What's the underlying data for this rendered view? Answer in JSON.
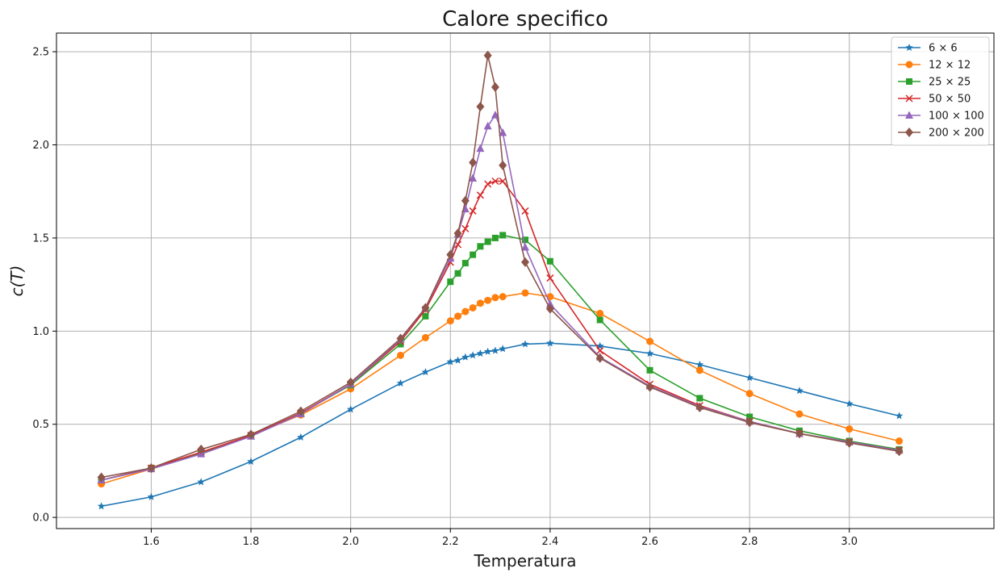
{
  "chart_data": {
    "type": "line",
    "title": "Calore specifico",
    "xlabel": "Temperatura",
    "ylabel": "c(T)",
    "xlim": [
      1.41,
      3.29
    ],
    "ylim": [
      -0.06,
      2.6
    ],
    "xticks": [
      1.6,
      1.8,
      2.0,
      2.2,
      2.4,
      2.6,
      2.8,
      3.0
    ],
    "xtick_labels": [
      "1.6",
      "1.8",
      "2.0",
      "2.2",
      "2.4",
      "2.6",
      "2.8",
      "3.0"
    ],
    "yticks": [
      0.0,
      0.5,
      1.0,
      1.5,
      2.0,
      2.5
    ],
    "ytick_labels": [
      "0.0",
      "0.5",
      "1.0",
      "1.5",
      "2.0",
      "2.5"
    ],
    "grid": true,
    "legend_position": "top-right",
    "series": [
      {
        "name": "6 × 6",
        "color": "#1f77b4",
        "marker": "star",
        "x": [
          1.5,
          1.6,
          1.7,
          1.8,
          1.9,
          2.0,
          2.1,
          2.15,
          2.2,
          2.215,
          2.23,
          2.245,
          2.26,
          2.275,
          2.29,
          2.305,
          2.35,
          2.4,
          2.5,
          2.6,
          2.7,
          2.8,
          2.9,
          3.0,
          3.1
        ],
        "y": [
          0.06,
          0.11,
          0.19,
          0.3,
          0.43,
          0.58,
          0.72,
          0.78,
          0.835,
          0.843,
          0.86,
          0.87,
          0.88,
          0.89,
          0.895,
          0.905,
          0.93,
          0.935,
          0.92,
          0.88,
          0.82,
          0.75,
          0.68,
          0.61,
          0.545
        ]
      },
      {
        "name": "12 × 12",
        "color": "#ff7f0e",
        "marker": "circle",
        "x": [
          1.5,
          1.6,
          1.7,
          1.8,
          1.9,
          2.0,
          2.1,
          2.15,
          2.2,
          2.215,
          2.23,
          2.245,
          2.26,
          2.275,
          2.29,
          2.305,
          2.35,
          2.4,
          2.5,
          2.6,
          2.7,
          2.8,
          2.9,
          3.0,
          3.1
        ],
        "y": [
          0.18,
          0.26,
          0.345,
          0.44,
          0.55,
          0.69,
          0.87,
          0.965,
          1.055,
          1.08,
          1.105,
          1.125,
          1.15,
          1.165,
          1.18,
          1.185,
          1.205,
          1.185,
          1.095,
          0.945,
          0.79,
          0.665,
          0.555,
          0.475,
          0.41
        ]
      },
      {
        "name": "25 × 25",
        "color": "#2ca02c",
        "marker": "square",
        "x": [
          1.5,
          1.6,
          1.7,
          1.8,
          1.9,
          2.0,
          2.1,
          2.15,
          2.2,
          2.215,
          2.23,
          2.245,
          2.26,
          2.275,
          2.29,
          2.305,
          2.35,
          2.4,
          2.5,
          2.6,
          2.7,
          2.8,
          2.9,
          3.0,
          3.1
        ],
        "y": [
          0.2,
          0.265,
          0.345,
          0.44,
          0.56,
          0.71,
          0.93,
          1.08,
          1.265,
          1.31,
          1.365,
          1.41,
          1.455,
          1.48,
          1.5,
          1.515,
          1.49,
          1.375,
          1.06,
          0.79,
          0.64,
          0.54,
          0.465,
          0.41,
          0.365
        ]
      },
      {
        "name": "50 × 50",
        "color": "#d62728",
        "marker": "x",
        "x": [
          1.5,
          1.6,
          1.7,
          1.8,
          1.9,
          2.0,
          2.1,
          2.15,
          2.2,
          2.215,
          2.23,
          2.245,
          2.26,
          2.275,
          2.29,
          2.305,
          2.35,
          2.4,
          2.5,
          2.6,
          2.7,
          2.8,
          2.9,
          3.0,
          3.1
        ],
        "y": [
          0.2,
          0.265,
          0.35,
          0.44,
          0.56,
          0.715,
          0.945,
          1.115,
          1.37,
          1.465,
          1.55,
          1.645,
          1.73,
          1.79,
          1.805,
          1.805,
          1.645,
          1.285,
          0.895,
          0.715,
          0.6,
          0.515,
          0.45,
          0.405,
          0.36
        ]
      },
      {
        "name": "100 × 100",
        "color": "#9467bd",
        "marker": "triangle",
        "x": [
          1.5,
          1.6,
          1.7,
          1.8,
          1.9,
          2.0,
          2.1,
          2.15,
          2.2,
          2.215,
          2.23,
          2.245,
          2.26,
          2.275,
          2.29,
          2.305,
          2.35,
          2.4,
          2.5,
          2.6,
          2.7,
          2.8,
          2.9,
          3.0,
          3.1
        ],
        "y": [
          0.2,
          0.26,
          0.34,
          0.435,
          0.555,
          0.715,
          0.955,
          1.125,
          1.39,
          1.52,
          1.655,
          1.82,
          1.98,
          2.1,
          2.16,
          2.065,
          1.45,
          1.145,
          0.86,
          0.705,
          0.595,
          0.515,
          0.45,
          0.405,
          0.36
        ]
      },
      {
        "name": "200 × 200",
        "color": "#8c564b",
        "marker": "diamond",
        "x": [
          1.5,
          1.6,
          1.7,
          1.8,
          1.9,
          2.0,
          2.1,
          2.15,
          2.2,
          2.215,
          2.23,
          2.245,
          2.26,
          2.275,
          2.29,
          2.305,
          2.35,
          2.4,
          2.5,
          2.6,
          2.7,
          2.8,
          2.9,
          3.0,
          3.1
        ],
        "y": [
          0.215,
          0.265,
          0.365,
          0.445,
          0.57,
          0.725,
          0.96,
          1.125,
          1.41,
          1.525,
          1.7,
          1.905,
          2.205,
          2.48,
          2.31,
          1.89,
          1.37,
          1.12,
          0.855,
          0.7,
          0.59,
          0.51,
          0.45,
          0.4,
          0.355
        ]
      }
    ]
  }
}
